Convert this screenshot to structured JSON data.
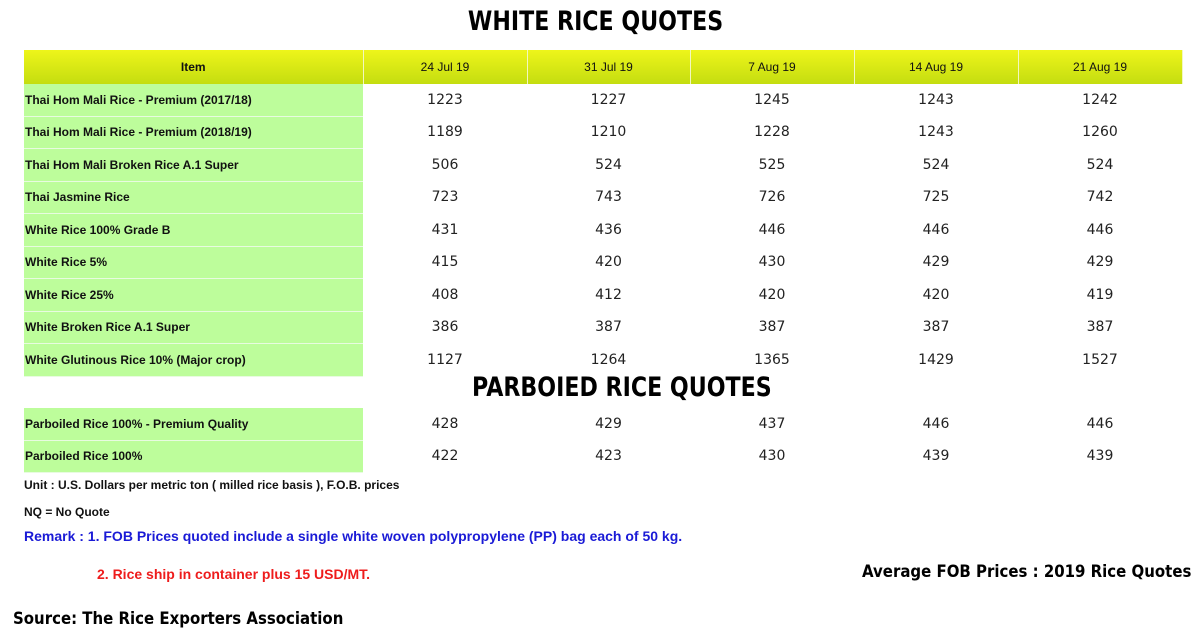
{
  "white_title": "WHITE RICE QUOTES",
  "parboiled_title": "PARBOIED RICE QUOTES",
  "columns": [
    "Item",
    "24 Jul 19",
    "31 Jul 19",
    "7 Aug 19",
    "14 Aug 19",
    "21 Aug 19"
  ],
  "white_rows": [
    {
      "item": "Thai Hom Mali Rice - Premium (2017/18)",
      "values": [
        "1223",
        "1227",
        "1245",
        "1243",
        "1242"
      ]
    },
    {
      "item": "Thai Hom Mali Rice - Premium (2018/19)",
      "values": [
        "1189",
        "1210",
        "1228",
        "1243",
        "1260"
      ]
    },
    {
      "item": "Thai Hom Mali Broken Rice A.1 Super",
      "values": [
        "506",
        "524",
        "525",
        "524",
        "524"
      ]
    },
    {
      "item": "Thai Jasmine Rice",
      "values": [
        "723",
        "743",
        "726",
        "725",
        "742"
      ]
    },
    {
      "item": "White Rice 100% Grade B",
      "values": [
        "431",
        "436",
        "446",
        "446",
        "446"
      ]
    },
    {
      "item": "White Rice 5%",
      "values": [
        "415",
        "420",
        "430",
        "429",
        "429"
      ]
    },
    {
      "item": "White Rice 25%",
      "values": [
        "408",
        "412",
        "420",
        "420",
        "419"
      ]
    },
    {
      "item": "White Broken Rice A.1 Super",
      "values": [
        "386",
        "387",
        "387",
        "387",
        "387"
      ]
    },
    {
      "item": "White Glutinous Rice 10% (Major crop)",
      "values": [
        "1127",
        "1264",
        "1365",
        "1429",
        "1527"
      ]
    }
  ],
  "parboiled_rows": [
    {
      "item": "Parboiled Rice 100% - Premium Quality",
      "values": [
        "428",
        "429",
        "437",
        "446",
        "446"
      ]
    },
    {
      "item": "Parboiled Rice 100%",
      "values": [
        "422",
        "423",
        "430",
        "439",
        "439"
      ]
    }
  ],
  "notes": {
    "unit": "Unit : U.S. Dollars per metric ton ( milled rice basis ), F.O.B. prices",
    "nq": "NQ = No Quote",
    "remark1": "Remark : 1. FOB Prices quoted include a single white woven polypropylene (PP) bag each of 50 kg.",
    "remark2": "2. Rice ship in container plus 15 USD/MT.",
    "average": "Average FOB Prices : 2019 Rice Quotes",
    "source": "Source: The Rice Exporters Association"
  },
  "colors": {
    "header": "#d8ea12",
    "item_bg": "#bdfd9b",
    "remark1": "#1a1ad6",
    "remark2": "#ee1c1c"
  }
}
